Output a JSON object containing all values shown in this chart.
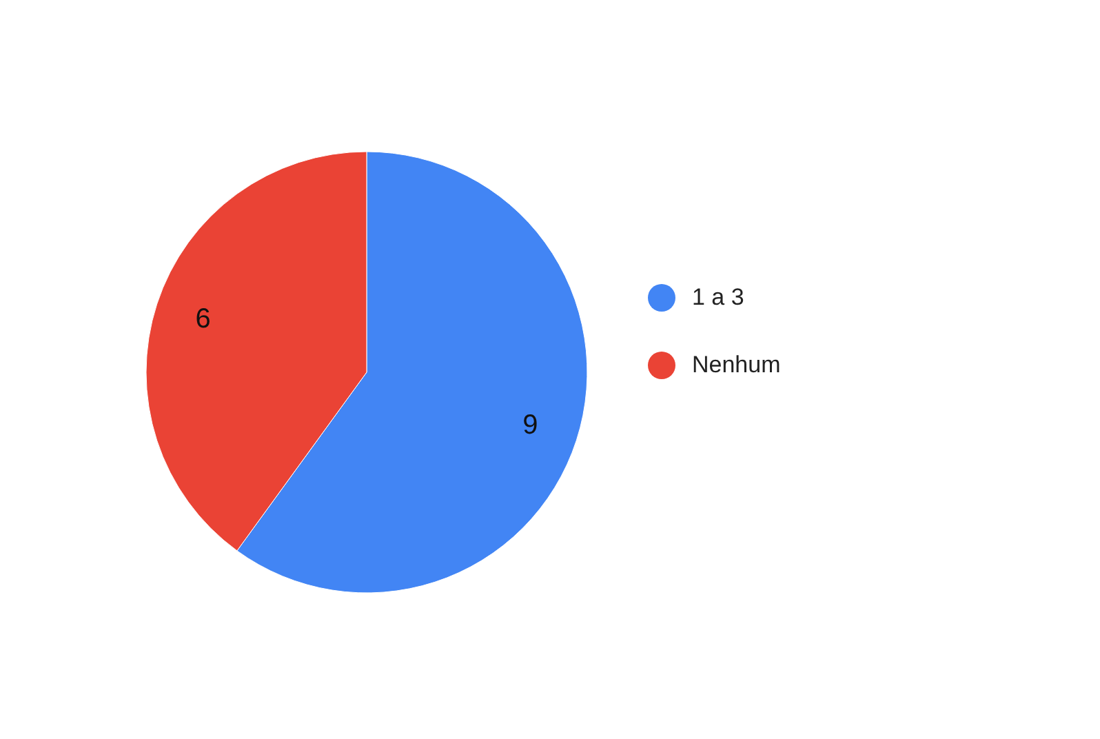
{
  "chart_data": {
    "type": "pie",
    "categories": [
      "1 a 3",
      "Nenhum"
    ],
    "values": [
      9,
      6
    ],
    "colors": [
      "#4285f4",
      "#ea4335"
    ],
    "data_labels": true,
    "legend": "right"
  }
}
